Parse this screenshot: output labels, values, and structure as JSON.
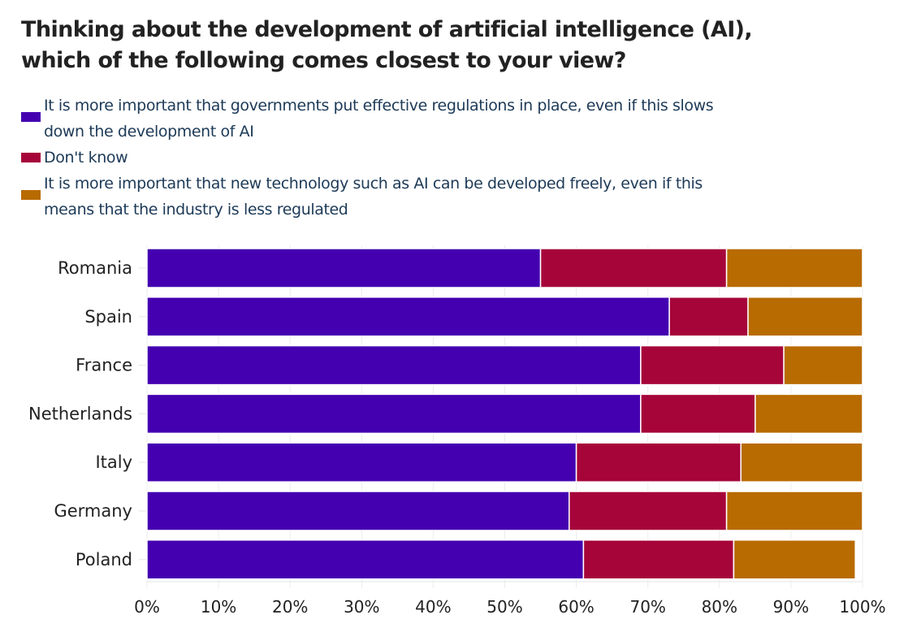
{
  "chart_data": {
    "type": "bar",
    "orientation": "horizontal",
    "stacked": true,
    "title": "Thinking about the development of artificial intelligence (AI), which of the following comes closest to your view?",
    "categories": [
      "Romania",
      "Spain",
      "France",
      "Netherlands",
      "Italy",
      "Germany",
      "Poland"
    ],
    "series": [
      {
        "name": "It is more important that governments put effective regulations in place, even if this slows down the development of AI",
        "color": "#4400b0",
        "values": [
          55,
          73,
          69,
          69,
          60,
          59,
          61
        ]
      },
      {
        "name": "Don't know",
        "color": "#a6053a",
        "values": [
          26,
          11,
          20,
          16,
          23,
          22,
          21
        ]
      },
      {
        "name": "It is more important that new technology such as AI can be developed freely, even if this means that the industry is less regulated",
        "color": "#b86b00",
        "values": [
          19,
          16,
          11,
          15,
          17,
          19,
          17
        ]
      }
    ],
    "xlim": [
      0,
      100
    ],
    "xticks": [
      "0%",
      "10%",
      "20%",
      "30%",
      "40%",
      "50%",
      "60%",
      "70%",
      "80%",
      "90%",
      "100%"
    ],
    "xlabel": "",
    "ylabel": "",
    "legend_position": "top-left",
    "grid": true
  },
  "title_line1": "Thinking about the development of artificial intelligence (AI),",
  "title_line2": "which of the following comes closest to your view?",
  "legend": [
    {
      "line1": "It is more important that governments put effective regulations in place, even if this slows",
      "line2": "down the development of AI",
      "color": "#4400b0"
    },
    {
      "line1": "Don't know",
      "color": "#a6053a"
    },
    {
      "line1": "It is more important that new technology such as AI can be developed freely, even if this",
      "line2": "means that the industry is less regulated",
      "color": "#b86b00"
    }
  ]
}
